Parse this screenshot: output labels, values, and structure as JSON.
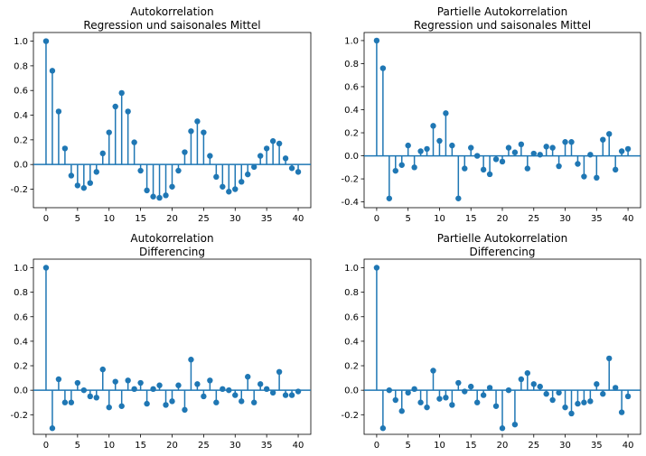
{
  "chart_data": [
    {
      "type": "stem",
      "title": "Autokorrelation",
      "subtitle": "Regression und saisonales Mittel",
      "xlim": [
        -2,
        42
      ],
      "ylim": [
        -0.35,
        1.07
      ],
      "xticks": [
        0,
        5,
        10,
        15,
        20,
        25,
        30,
        35,
        40
      ],
      "yticks": [
        -0.2,
        0.0,
        0.2,
        0.4,
        0.6,
        0.8,
        1.0
      ],
      "color": "#1f77b4",
      "x": [
        0,
        1,
        2,
        3,
        4,
        5,
        6,
        7,
        8,
        9,
        10,
        11,
        12,
        13,
        14,
        15,
        16,
        17,
        18,
        19,
        20,
        21,
        22,
        23,
        24,
        25,
        26,
        27,
        28,
        29,
        30,
        31,
        32,
        33,
        34,
        35,
        36,
        37,
        38,
        39,
        40
      ],
      "values": [
        1.0,
        0.76,
        0.43,
        0.13,
        -0.09,
        -0.17,
        -0.19,
        -0.15,
        -0.06,
        0.09,
        0.26,
        0.47,
        0.58,
        0.43,
        0.18,
        -0.05,
        -0.21,
        -0.26,
        -0.27,
        -0.25,
        -0.18,
        -0.05,
        0.1,
        0.27,
        0.35,
        0.26,
        0.07,
        -0.1,
        -0.18,
        -0.22,
        -0.2,
        -0.14,
        -0.08,
        -0.02,
        0.07,
        0.13,
        0.19,
        0.17,
        0.05,
        -0.03,
        -0.06
      ]
    },
    {
      "type": "stem",
      "title": "Partielle Autokorrelation",
      "subtitle": "Regression und saisonales Mittel",
      "xlim": [
        -2,
        42
      ],
      "ylim": [
        -0.45,
        1.07
      ],
      "xticks": [
        0,
        5,
        10,
        15,
        20,
        25,
        30,
        35,
        40
      ],
      "yticks": [
        -0.4,
        -0.2,
        0.0,
        0.2,
        0.4,
        0.6,
        0.8,
        1.0
      ],
      "color": "#1f77b4",
      "x": [
        0,
        1,
        2,
        3,
        4,
        5,
        6,
        7,
        8,
        9,
        10,
        11,
        12,
        13,
        14,
        15,
        16,
        17,
        18,
        19,
        20,
        21,
        22,
        23,
        24,
        25,
        26,
        27,
        28,
        29,
        30,
        31,
        32,
        33,
        34,
        35,
        36,
        37,
        38,
        39,
        40
      ],
      "values": [
        1.0,
        0.76,
        -0.37,
        -0.13,
        -0.08,
        0.09,
        -0.1,
        0.04,
        0.06,
        0.26,
        0.13,
        0.37,
        0.09,
        -0.37,
        -0.11,
        0.07,
        0.0,
        -0.12,
        -0.16,
        -0.03,
        -0.05,
        0.07,
        0.03,
        0.1,
        -0.11,
        0.02,
        0.01,
        0.08,
        0.07,
        -0.09,
        0.12,
        0.12,
        -0.07,
        -0.18,
        0.01,
        -0.19,
        0.14,
        0.19,
        -0.12,
        0.04,
        0.06
      ]
    },
    {
      "type": "stem",
      "title": "Autokorrelation",
      "subtitle": "Differencing",
      "xlim": [
        -2,
        42
      ],
      "ylim": [
        -0.36,
        1.07
      ],
      "xticks": [
        0,
        5,
        10,
        15,
        20,
        25,
        30,
        35,
        40
      ],
      "yticks": [
        -0.2,
        0.0,
        0.2,
        0.4,
        0.6,
        0.8,
        1.0
      ],
      "color": "#1f77b4",
      "x": [
        0,
        1,
        2,
        3,
        4,
        5,
        6,
        7,
        8,
        9,
        10,
        11,
        12,
        13,
        14,
        15,
        16,
        17,
        18,
        19,
        20,
        21,
        22,
        23,
        24,
        25,
        26,
        27,
        28,
        29,
        30,
        31,
        32,
        33,
        34,
        35,
        36,
        37,
        38,
        39,
        40
      ],
      "values": [
        1.0,
        -0.31,
        0.09,
        -0.1,
        -0.1,
        0.06,
        0.0,
        -0.05,
        -0.06,
        0.17,
        -0.14,
        0.07,
        -0.13,
        0.08,
        0.01,
        0.06,
        -0.11,
        0.01,
        0.04,
        -0.12,
        -0.09,
        0.04,
        -0.16,
        0.25,
        0.05,
        -0.05,
        0.08,
        -0.1,
        0.01,
        0.0,
        -0.04,
        -0.09,
        0.11,
        -0.1,
        0.05,
        0.01,
        -0.02,
        0.15,
        -0.04,
        -0.04,
        -0.01
      ]
    },
    {
      "type": "stem",
      "title": "Partielle Autokorrelation",
      "subtitle": "Differencing",
      "xlim": [
        -2,
        42
      ],
      "ylim": [
        -0.36,
        1.07
      ],
      "xticks": [
        0,
        5,
        10,
        15,
        20,
        25,
        30,
        35,
        40
      ],
      "yticks": [
        -0.2,
        0.0,
        0.2,
        0.4,
        0.6,
        0.8,
        1.0
      ],
      "color": "#1f77b4",
      "x": [
        0,
        1,
        2,
        3,
        4,
        5,
        6,
        7,
        8,
        9,
        10,
        11,
        12,
        13,
        14,
        15,
        16,
        17,
        18,
        19,
        20,
        21,
        22,
        23,
        24,
        25,
        26,
        27,
        28,
        29,
        30,
        31,
        32,
        33,
        34,
        35,
        36,
        37,
        38,
        39,
        40
      ],
      "values": [
        1.0,
        -0.31,
        0.0,
        -0.08,
        -0.17,
        -0.02,
        0.01,
        -0.1,
        -0.14,
        0.16,
        -0.07,
        -0.06,
        -0.12,
        0.06,
        -0.01,
        0.03,
        -0.1,
        -0.04,
        0.02,
        -0.13,
        -0.31,
        0.0,
        -0.28,
        0.09,
        0.14,
        0.05,
        0.03,
        -0.03,
        -0.08,
        -0.02,
        -0.14,
        -0.19,
        -0.11,
        -0.1,
        -0.09,
        0.05,
        -0.03,
        0.26,
        0.02,
        -0.18,
        -0.05
      ]
    }
  ]
}
